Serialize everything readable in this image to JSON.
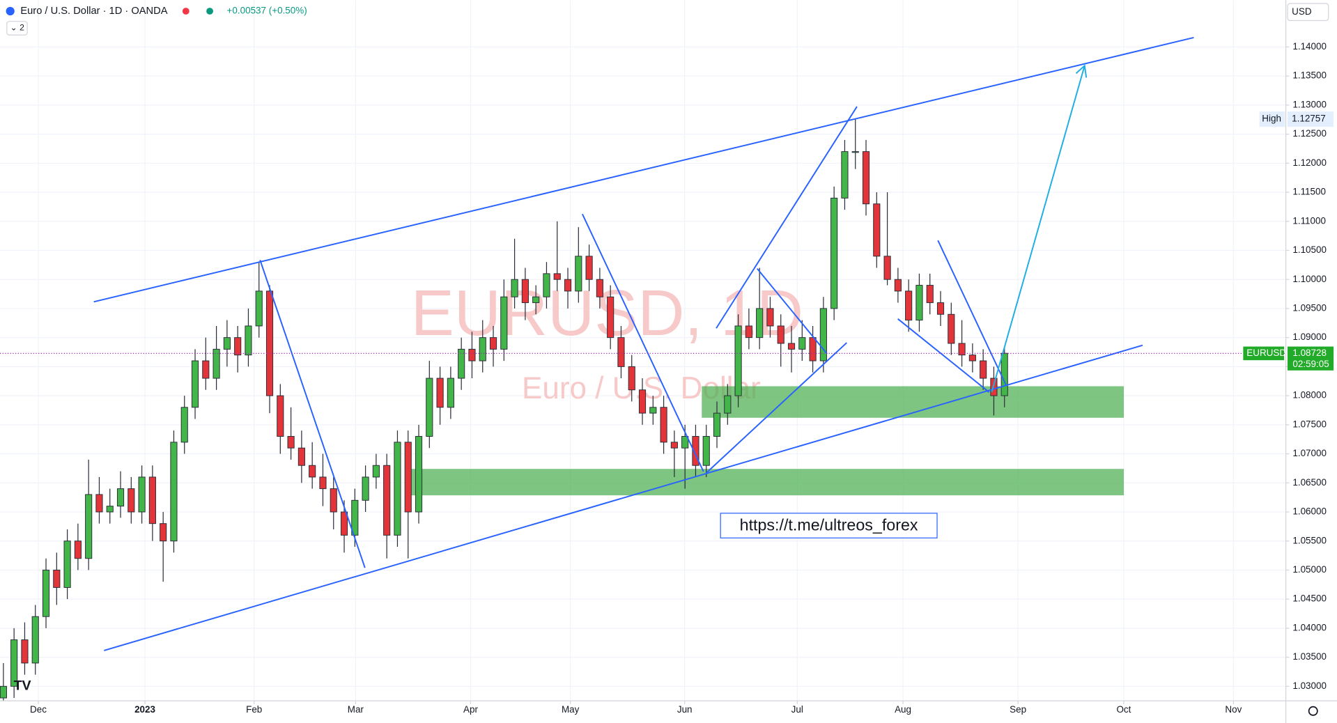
{
  "chart_data": {
    "type": "candlestick",
    "title": "Euro / U.S. Dollar · 1D · OANDA",
    "change": "+0.00537 (+0.50%)",
    "indicator_count": "2",
    "currency": "USD",
    "watermark": "EURUSD, 1D",
    "watermark_sub": "Euro / U.S. Dollar",
    "link": "https://t.me/ultreos_forex",
    "high_label": "High",
    "high": 1.12757,
    "symbol": "EURUSD",
    "last_price": 1.08728,
    "countdown": "02:59:05",
    "up_color": "#43b649",
    "down_color": "#e3343a",
    "grid": true,
    "xlim": [
      -0.32,
      120.42
    ],
    "xticks": [
      {
        "value": 3.28,
        "label": "Dec"
      },
      {
        "value": 13.29,
        "label": "2023"
      },
      {
        "value": 23.54,
        "label": "Feb"
      },
      {
        "value": 33.07,
        "label": "Mar"
      },
      {
        "value": 43.87,
        "label": "Apr"
      },
      {
        "value": 53.24,
        "label": "May"
      },
      {
        "value": 63.97,
        "label": "Jun"
      },
      {
        "value": 74.54,
        "label": "Jul"
      },
      {
        "value": 84.47,
        "label": "Aug"
      },
      {
        "value": 95.27,
        "label": "Sep"
      },
      {
        "value": 105.2,
        "label": "Oct"
      },
      {
        "value": 115.5,
        "label": "Nov"
      }
    ],
    "ylim": [
      1.02751,
      1.14367
    ],
    "yticks": [
      {
        "value": 1.03,
        "label": "1.03000"
      },
      {
        "value": 1.035,
        "label": "1.03500"
      },
      {
        "value": 1.04,
        "label": "1.04000"
      },
      {
        "value": 1.045,
        "label": "1.04500"
      },
      {
        "value": 1.05,
        "label": "1.05000"
      },
      {
        "value": 1.055,
        "label": "1.05500"
      },
      {
        "value": 1.06,
        "label": "1.06000"
      },
      {
        "value": 1.065,
        "label": "1.06500"
      },
      {
        "value": 1.07,
        "label": "1.07000"
      },
      {
        "value": 1.075,
        "label": "1.07500"
      },
      {
        "value": 1.08,
        "label": "1.08000"
      },
      {
        "value": 1.085,
        "label": "1.08500"
      },
      {
        "value": 1.09,
        "label": "1.09000"
      },
      {
        "value": 1.095,
        "label": "1.09500"
      },
      {
        "value": 1.1,
        "label": "1.10000"
      },
      {
        "value": 1.105,
        "label": "1.10500"
      },
      {
        "value": 1.11,
        "label": "1.11000"
      },
      {
        "value": 1.115,
        "label": "1.11500"
      },
      {
        "value": 1.12,
        "label": "1.12000"
      },
      {
        "value": 1.125,
        "label": "1.12500"
      },
      {
        "value": 1.13,
        "label": "1.13000"
      },
      {
        "value": 1.135,
        "label": "1.13500"
      },
      {
        "value": 1.14,
        "label": "1.14000"
      }
    ],
    "candles": [
      [
        1.028,
        1.034,
        1.026,
        1.03
      ],
      [
        1.03,
        1.04,
        1.028,
        1.038
      ],
      [
        1.038,
        1.041,
        1.032,
        1.034
      ],
      [
        1.034,
        1.044,
        1.032,
        1.042
      ],
      [
        1.042,
        1.052,
        1.04,
        1.05
      ],
      [
        1.05,
        1.053,
        1.044,
        1.047
      ],
      [
        1.047,
        1.057,
        1.045,
        1.055
      ],
      [
        1.055,
        1.058,
        1.05,
        1.052
      ],
      [
        1.052,
        1.069,
        1.05,
        1.063
      ],
      [
        1.063,
        1.066,
        1.058,
        1.06
      ],
      [
        1.06,
        1.064,
        1.058,
        1.061
      ],
      [
        1.061,
        1.067,
        1.059,
        1.064
      ],
      [
        1.064,
        1.066,
        1.058,
        1.06
      ],
      [
        1.06,
        1.068,
        1.058,
        1.066
      ],
      [
        1.066,
        1.068,
        1.055,
        1.058
      ],
      [
        1.058,
        1.06,
        1.048,
        1.055
      ],
      [
        1.055,
        1.074,
        1.053,
        1.072
      ],
      [
        1.072,
        1.08,
        1.07,
        1.078
      ],
      [
        1.078,
        1.088,
        1.076,
        1.086
      ],
      [
        1.086,
        1.09,
        1.081,
        1.083
      ],
      [
        1.083,
        1.092,
        1.081,
        1.088
      ],
      [
        1.088,
        1.093,
        1.085,
        1.09
      ],
      [
        1.09,
        1.092,
        1.084,
        1.087
      ],
      [
        1.087,
        1.095,
        1.085,
        1.092
      ],
      [
        1.092,
        1.103,
        1.09,
        1.098
      ],
      [
        1.098,
        1.099,
        1.077,
        1.08
      ],
      [
        1.08,
        1.082,
        1.07,
        1.073
      ],
      [
        1.073,
        1.078,
        1.069,
        1.071
      ],
      [
        1.071,
        1.074,
        1.065,
        1.068
      ],
      [
        1.068,
        1.072,
        1.064,
        1.066
      ],
      [
        1.066,
        1.07,
        1.061,
        1.064
      ],
      [
        1.064,
        1.066,
        1.057,
        1.06
      ],
      [
        1.06,
        1.062,
        1.053,
        1.056
      ],
      [
        1.056,
        1.064,
        1.054,
        1.062
      ],
      [
        1.062,
        1.068,
        1.06,
        1.066
      ],
      [
        1.066,
        1.07,
        1.064,
        1.068
      ],
      [
        1.068,
        1.07,
        1.052,
        1.056
      ],
      [
        1.056,
        1.074,
        1.054,
        1.072
      ],
      [
        1.072,
        1.074,
        1.052,
        1.06
      ],
      [
        1.06,
        1.075,
        1.058,
        1.073
      ],
      [
        1.073,
        1.086,
        1.071,
        1.083
      ],
      [
        1.083,
        1.085,
        1.075,
        1.078
      ],
      [
        1.078,
        1.085,
        1.076,
        1.083
      ],
      [
        1.083,
        1.09,
        1.081,
        1.088
      ],
      [
        1.088,
        1.091,
        1.083,
        1.086
      ],
      [
        1.086,
        1.093,
        1.084,
        1.09
      ],
      [
        1.09,
        1.092,
        1.085,
        1.088
      ],
      [
        1.088,
        1.1,
        1.086,
        1.097
      ],
      [
        1.097,
        1.107,
        1.095,
        1.1
      ],
      [
        1.1,
        1.102,
        1.093,
        1.096
      ],
      [
        1.096,
        1.099,
        1.094,
        1.097
      ],
      [
        1.097,
        1.103,
        1.095,
        1.101
      ],
      [
        1.101,
        1.11,
        1.098,
        1.1
      ],
      [
        1.1,
        1.102,
        1.095,
        1.098
      ],
      [
        1.098,
        1.109,
        1.096,
        1.104
      ],
      [
        1.104,
        1.106,
        1.098,
        1.1
      ],
      [
        1.1,
        1.102,
        1.095,
        1.097
      ],
      [
        1.097,
        1.099,
        1.088,
        1.09
      ],
      [
        1.09,
        1.092,
        1.083,
        1.085
      ],
      [
        1.085,
        1.087,
        1.079,
        1.081
      ],
      [
        1.081,
        1.083,
        1.075,
        1.077
      ],
      [
        1.077,
        1.08,
        1.075,
        1.078
      ],
      [
        1.078,
        1.08,
        1.07,
        1.072
      ],
      [
        1.072,
        1.074,
        1.066,
        1.071
      ],
      [
        1.071,
        1.075,
        1.064,
        1.073
      ],
      [
        1.073,
        1.075,
        1.066,
        1.068
      ],
      [
        1.068,
        1.075,
        1.066,
        1.073
      ],
      [
        1.073,
        1.079,
        1.071,
        1.077
      ],
      [
        1.077,
        1.082,
        1.075,
        1.08
      ],
      [
        1.08,
        1.094,
        1.078,
        1.092
      ],
      [
        1.092,
        1.095,
        1.088,
        1.09
      ],
      [
        1.09,
        1.102,
        1.088,
        1.095
      ],
      [
        1.095,
        1.097,
        1.09,
        1.092
      ],
      [
        1.092,
        1.094,
        1.085,
        1.089
      ],
      [
        1.089,
        1.092,
        1.084,
        1.088
      ],
      [
        1.088,
        1.093,
        1.086,
        1.09
      ],
      [
        1.09,
        1.092,
        1.084,
        1.086
      ],
      [
        1.086,
        1.097,
        1.084,
        1.095
      ],
      [
        1.095,
        1.116,
        1.093,
        1.114
      ],
      [
        1.114,
        1.124,
        1.112,
        1.122
      ],
      [
        1.122,
        1.1276,
        1.119,
        1.122
      ],
      [
        1.122,
        1.124,
        1.111,
        1.113
      ],
      [
        1.113,
        1.115,
        1.102,
        1.104
      ],
      [
        1.104,
        1.115,
        1.099,
        1.1
      ],
      [
        1.1,
        1.102,
        1.096,
        1.098
      ],
      [
        1.098,
        1.1,
        1.091,
        1.093
      ],
      [
        1.093,
        1.101,
        1.091,
        1.099
      ],
      [
        1.099,
        1.101,
        1.094,
        1.096
      ],
      [
        1.096,
        1.098,
        1.092,
        1.094
      ],
      [
        1.094,
        1.096,
        1.087,
        1.089
      ],
      [
        1.089,
        1.093,
        1.085,
        1.087
      ],
      [
        1.087,
        1.089,
        1.084,
        1.086
      ],
      [
        1.086,
        1.088,
        1.081,
        1.083
      ],
      [
        1.083,
        1.085,
        1.0766,
        1.08
      ],
      [
        1.08,
        1.0885,
        1.078,
        1.0873
      ]
    ]
  }
}
